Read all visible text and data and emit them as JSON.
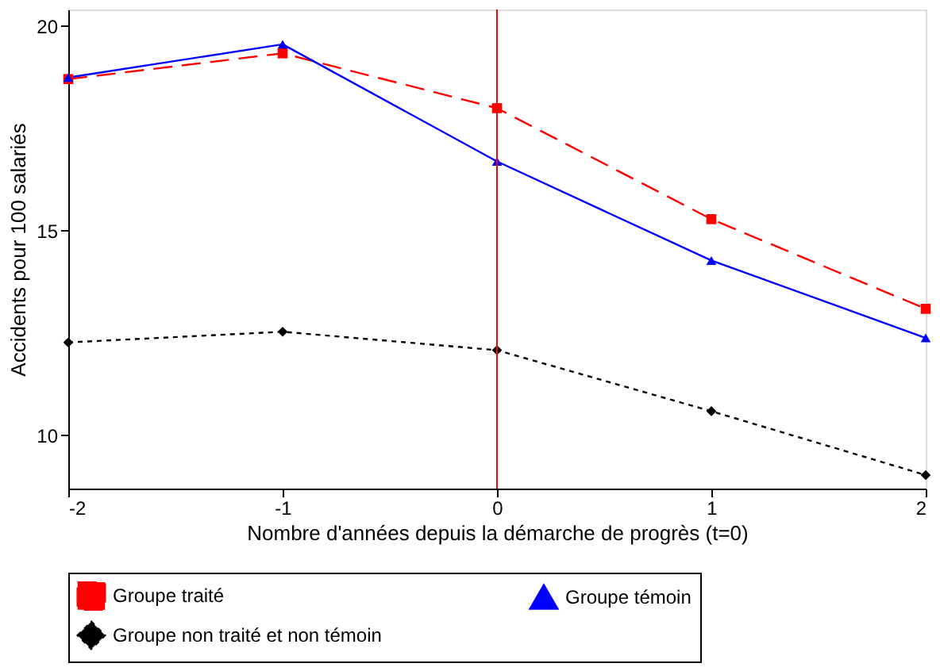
{
  "chart_data": {
    "type": "line",
    "xlabel": "Nombre d'années depuis la démarche de progrès (t=0)",
    "ylabel": "Accidents pour 100 salariés",
    "x": [
      -2,
      -1,
      0,
      1,
      2
    ],
    "series": [
      {
        "name": "Groupe traité",
        "color": "#ff0000",
        "line_style": "dashed",
        "marker": "square",
        "values": [
          18.7,
          19.33,
          17.99,
          15.28,
          13.09
        ]
      },
      {
        "name": "Groupe témoin",
        "color": "#0000ff",
        "line_style": "solid",
        "marker": "triangle",
        "values": [
          18.74,
          19.55,
          16.69,
          14.27,
          12.38
        ]
      },
      {
        "name": "Groupe non traité et non témoin",
        "color": "#000000",
        "line_style": "dotted",
        "marker": "diamond",
        "values": [
          12.27,
          12.53,
          12.08,
          10.59,
          9.03
        ]
      }
    ],
    "xlim": [
      -2,
      2
    ],
    "xticks": [
      -2,
      -1,
      0,
      1,
      2
    ],
    "ylim": [
      8.7,
      20.4
    ],
    "yticks": [
      10,
      15,
      20
    ],
    "ref_lines": [
      {
        "axis": "x",
        "value": 0,
        "color": "#ff0000",
        "line_style": "solid"
      }
    ],
    "grid": false,
    "legend": "bottom"
  }
}
